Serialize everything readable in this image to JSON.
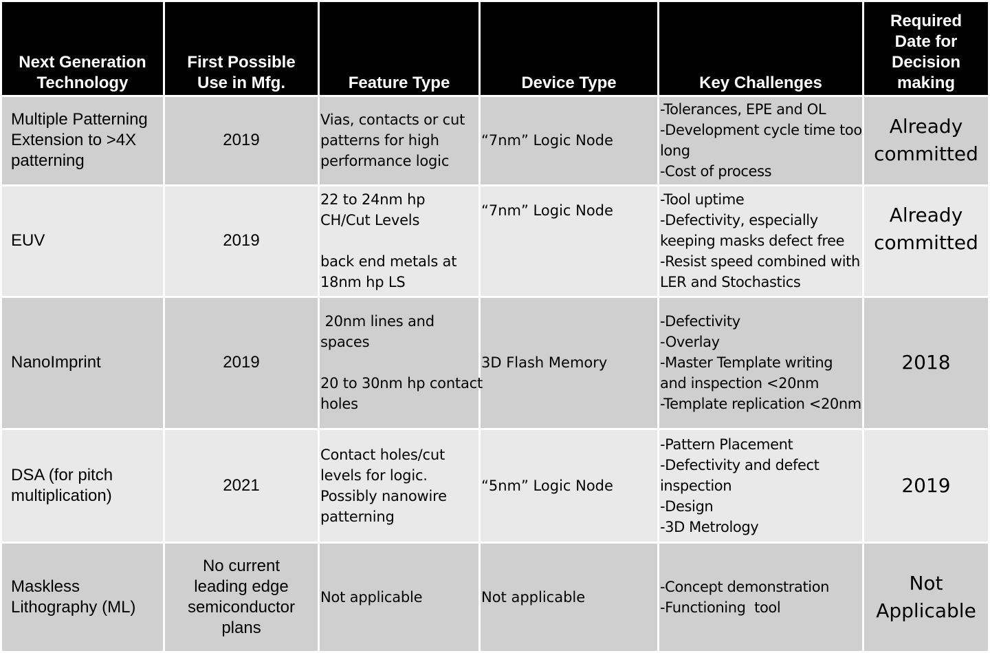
{
  "headers": {
    "technology": [
      "Next Generation",
      "Technology"
    ],
    "first_use": [
      "First Possible",
      "Use in Mfg."
    ],
    "feature_type": "Feature Type",
    "device_type": "Device Type",
    "key_challenges": "Key Challenges",
    "decision_date": [
      "Required",
      "Date for",
      "Decision",
      "making"
    ]
  },
  "rows": [
    {
      "technology": [
        "Multiple Patterning",
        "Extension  to >4X",
        "patterning"
      ],
      "first_use": [
        "2019"
      ],
      "feature_type": [
        "Vias, contacts or cut",
        "patterns for high",
        "performance logic"
      ],
      "device_type": "“7nm” Logic Node",
      "key_challenges": [
        "-Tolerances, EPE and OL",
        "-Development cycle time too",
        "long",
        "-Cost of process"
      ],
      "decision_date": [
        "Already",
        "committed"
      ]
    },
    {
      "technology": [
        "EUV"
      ],
      "first_use": [
        "2019"
      ],
      "feature_type": [
        "22 to  24nm hp",
        "CH/Cut Levels",
        "",
        "back end metals at",
        "18nm hp LS"
      ],
      "device_type": "“7nm” Logic Node",
      "key_challenges": [
        "-Tool uptime",
        "-Defectivity, especially",
        "keeping masks defect free",
        "-Resist speed combined with",
        "LER and Stochastics"
      ],
      "decision_date": [
        "Already",
        "committed"
      ]
    },
    {
      "technology": [
        "NanoImprint"
      ],
      "first_use": [
        "2019"
      ],
      "feature_type": [
        " 20nm lines and",
        "spaces",
        "",
        "20 to 30nm hp contact",
        "holes"
      ],
      "device_type": "3D Flash Memory",
      "key_challenges": [
        "-Defectivity",
        "-Overlay",
        "-Master Template writing",
        "and inspection <20nm",
        "-Template replication <20nm"
      ],
      "decision_date": [
        "2018"
      ]
    },
    {
      "technology": [
        "DSA (for pitch",
        "multiplication)"
      ],
      "first_use": [
        "2021"
      ],
      "feature_type": [
        "Contact holes/cut",
        "levels for logic.",
        "Possibly nanowire",
        "patterning"
      ],
      "device_type": "“5nm” Logic Node",
      "key_challenges": [
        "-Pattern Placement",
        "-Defectivity and defect",
        "inspection",
        "-Design",
        "-3D Metrology"
      ],
      "decision_date": [
        "2019"
      ]
    },
    {
      "technology": [
        "Maskless",
        "Lithography (ML)"
      ],
      "first_use": [
        "No current",
        "leading edge",
        "semiconductor",
        "plans"
      ],
      "feature_type": [
        "Not applicable"
      ],
      "device_type": "Not applicable",
      "key_challenges": [
        "-Concept demonstration",
        "-Functioning  tool"
      ],
      "decision_date": [
        "Not",
        "Applicable"
      ]
    }
  ]
}
